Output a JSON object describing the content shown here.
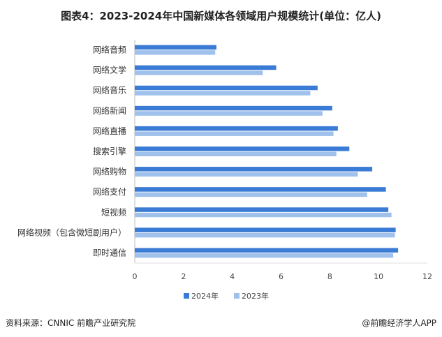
{
  "title": "图表4：2023-2024年中国新媒体各领域用户规模统计(单位：亿人)",
  "footer": {
    "source": "资料来源：CNNIC 前瞻产业研究院",
    "brand": "@前瞻经济学人APP"
  },
  "chart_data": {
    "type": "bar",
    "orientation": "horizontal",
    "categories": [
      "网络音频",
      "网络文学",
      "网络音乐",
      "网络新闻",
      "网络直播",
      "搜索引擎",
      "网络购物",
      "网络支付",
      "短视频",
      "网络视频（包含微短剧用户）",
      "即时通信"
    ],
    "series": [
      {
        "name": "2024年",
        "values": [
          3.35,
          5.8,
          7.5,
          8.1,
          8.33,
          8.8,
          9.74,
          10.3,
          10.4,
          10.7,
          10.8
        ],
        "color": "#3a7bd5"
      },
      {
        "name": "2023年",
        "values": [
          3.3,
          5.25,
          7.2,
          7.7,
          8.15,
          8.27,
          9.15,
          9.53,
          10.53,
          10.67,
          10.6
        ],
        "color": "#9fc1ec"
      }
    ],
    "xlim": [
      0,
      12
    ],
    "xticks": [
      "0",
      "2",
      "4",
      "6",
      "8",
      "10",
      "12"
    ],
    "legend": "bottom-center",
    "grid": false
  }
}
